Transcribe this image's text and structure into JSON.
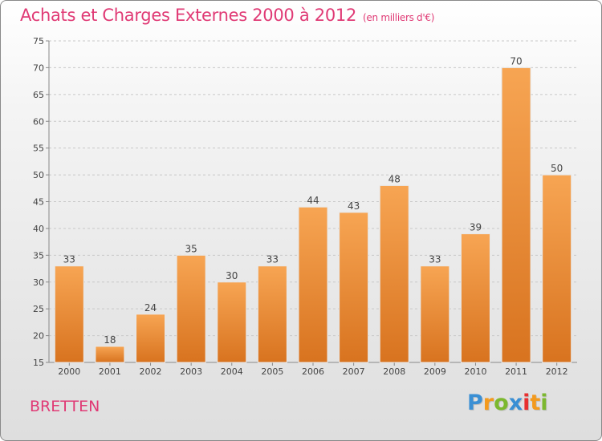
{
  "header": {
    "title": "Achats et Charges Externes 2000 à 2012",
    "unit": "(en milliers d'€)"
  },
  "footer": {
    "city": "BRETTEN",
    "logo": "Proxiti"
  },
  "colors": {
    "accent": "#e03a75",
    "bar_light": "#f7a553",
    "bar_dark": "#d8731f",
    "logo_letters": [
      "#3a8fd4",
      "#f39a1e",
      "#7cb82f",
      "#3a8fd4",
      "#e8302f",
      "#f39a1e",
      "#7cb82f"
    ]
  },
  "chart_data": {
    "type": "bar",
    "categories": [
      "2000",
      "2001",
      "2002",
      "2003",
      "2004",
      "2005",
      "2006",
      "2007",
      "2008",
      "2009",
      "2010",
      "2011",
      "2012"
    ],
    "values": [
      33,
      18,
      24,
      35,
      30,
      33,
      44,
      43,
      48,
      33,
      39,
      70,
      50
    ],
    "title": "Achats et Charges Externes 2000 à 2012",
    "unit": "(en milliers d'€)",
    "ylim": [
      15,
      75
    ],
    "yticks": [
      15,
      20,
      25,
      30,
      35,
      40,
      45,
      50,
      55,
      60,
      65,
      70,
      75
    ],
    "grid": "horizontal dashed",
    "legend": "none",
    "data_labels": true
  }
}
